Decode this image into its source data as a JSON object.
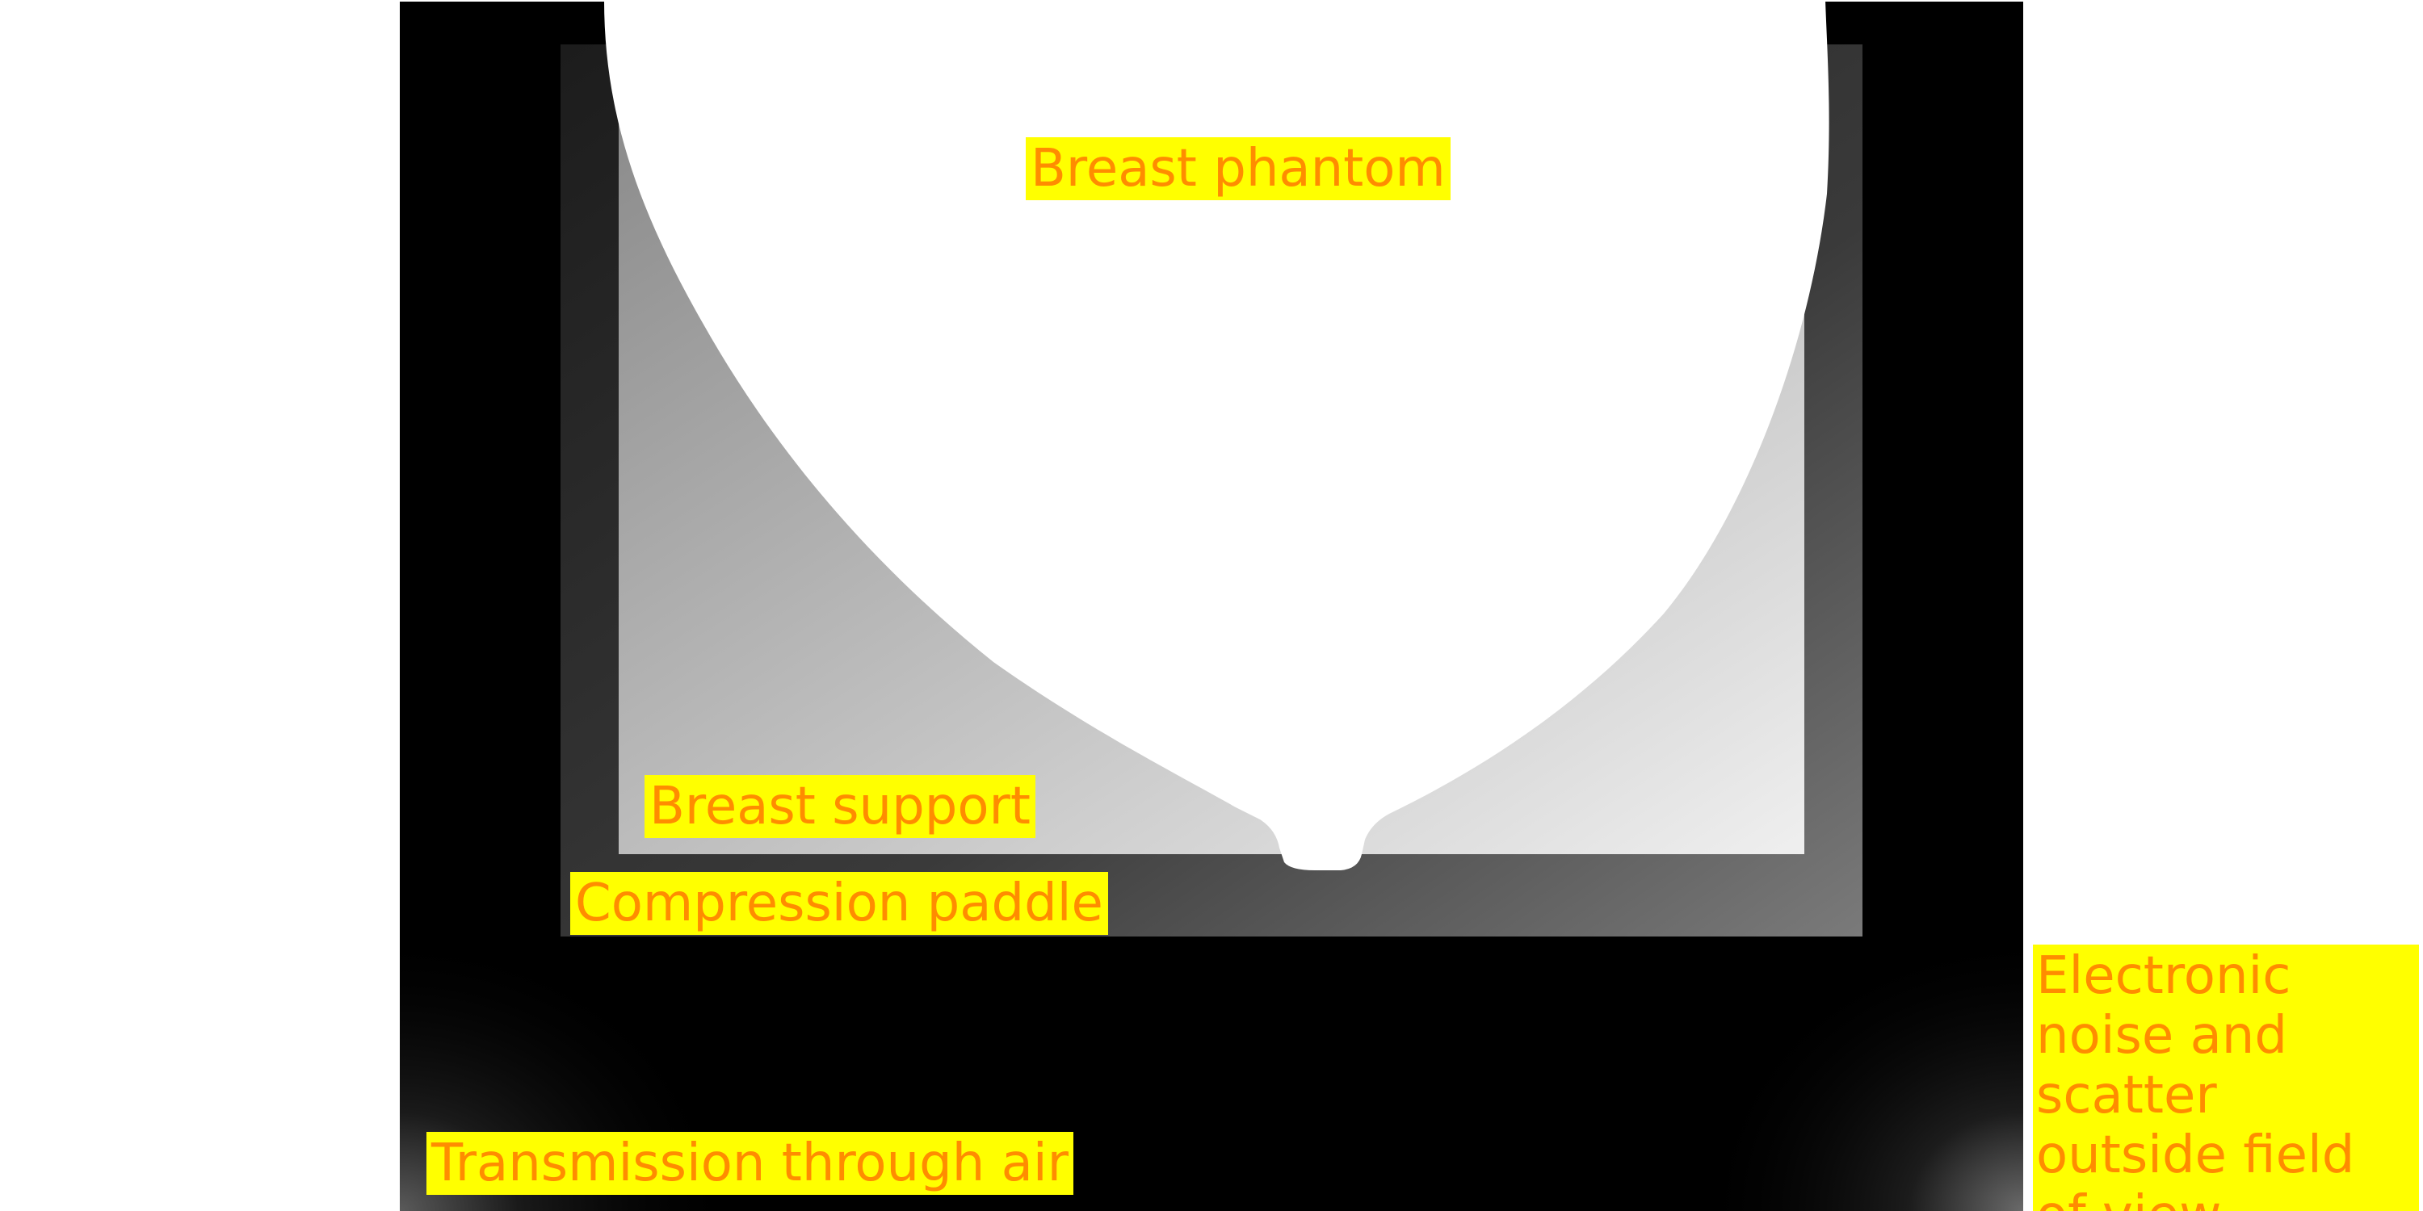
{
  "labels": {
    "breast_phantom": "Breast phantom",
    "breast_support": "Breast support",
    "compression_paddle": "Compression paddle",
    "transmission_air": "Transmission through air",
    "noise_scatter": "Electronic noise and scatter outside field of view"
  },
  "colors": {
    "label_background": "#ffff00",
    "label_text": "#ff8c00",
    "detector_background": "#000000",
    "phantom": "#ffffff",
    "support_gradient_dark": "#8c8c8c",
    "support_gradient_light": "#ececec",
    "paddle_gradient_dark": "#262626",
    "paddle_gradient_light": "#7a7a7a"
  }
}
